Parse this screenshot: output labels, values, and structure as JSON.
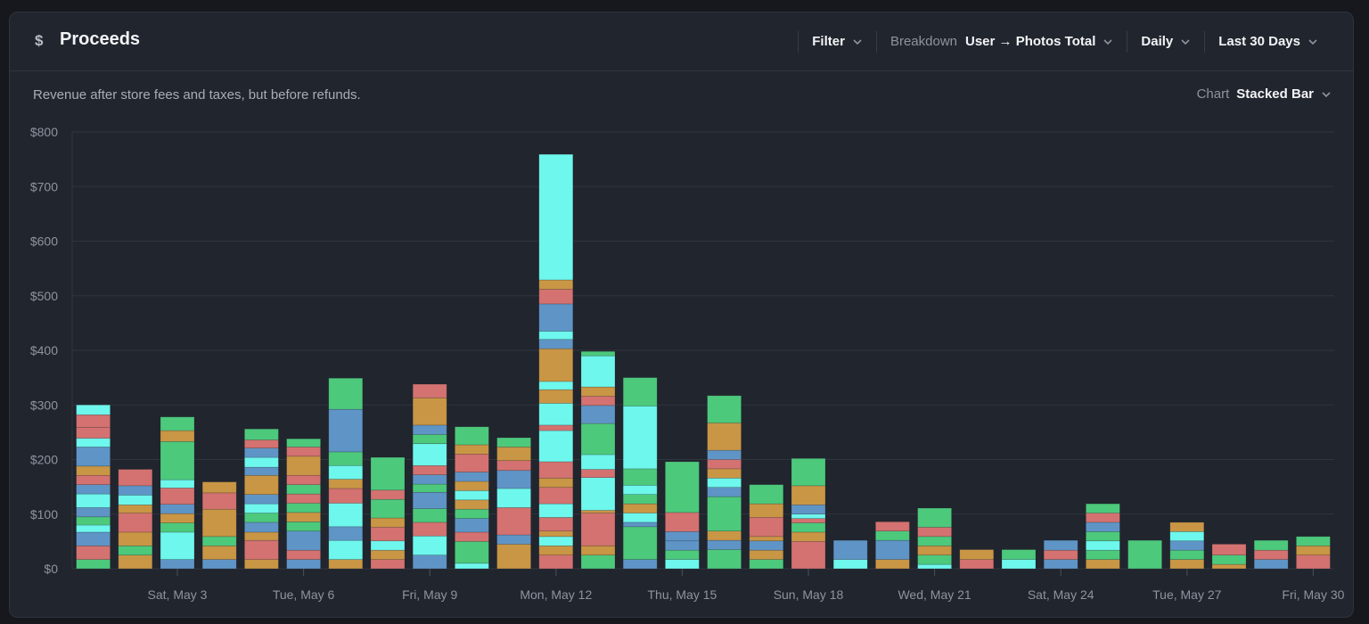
{
  "header": {
    "title": "Proceeds",
    "icon": "dollar-icon",
    "filter_label": "Filter",
    "breakdown_label": "Breakdown",
    "breakdown_value": "User → Photos Total",
    "interval_value": "Daily",
    "range_value": "Last 30 Days"
  },
  "subtitle": "Revenue after store fees and taxes, but before refunds.",
  "chart_select": {
    "label": "Chart",
    "value": "Stacked Bar"
  },
  "chart_data": {
    "type": "bar",
    "stacked": true,
    "ylim": [
      0,
      800
    ],
    "yticks": [
      0,
      100,
      200,
      300,
      400,
      500,
      600,
      700,
      800
    ],
    "ytick_labels": [
      "$0",
      "$100",
      "$200",
      "$300",
      "$400",
      "$500",
      "$600",
      "$700",
      "$800"
    ],
    "xtick_labels": [
      "Sat, May 3",
      "Tue, May 6",
      "Fri, May 9",
      "Mon, May 12",
      "Thu, May 15",
      "Sun, May 18",
      "Wed, May 21",
      "Sat, May 24",
      "Tue, May 27",
      "Fri, May 30"
    ],
    "xtick_indices": [
      2,
      5,
      8,
      11,
      14,
      17,
      20,
      23,
      26,
      29
    ],
    "grid": true,
    "colors": [
      "#4dc97c",
      "#d37270",
      "#5f95c6",
      "#6ef7ec",
      "#c99645"
    ],
    "categories": [
      "May 1",
      "May 2",
      "May 3",
      "May 4",
      "May 5",
      "May 6",
      "May 7",
      "May 8",
      "May 9",
      "May 10",
      "May 11",
      "May 12",
      "May 13",
      "May 14",
      "May 15",
      "May 16",
      "May 17",
      "May 18",
      "May 19",
      "May 20",
      "May 21",
      "May 22",
      "May 23",
      "May 24",
      "May 25",
      "May 26",
      "May 27",
      "May 28",
      "May 29",
      "May 30"
    ],
    "segments": [
      [
        [
          0,
          17
        ],
        [
          1,
          25
        ],
        [
          2,
          25
        ],
        [
          3,
          13
        ],
        [
          0,
          15
        ],
        [
          2,
          17
        ],
        [
          3,
          25
        ],
        [
          2,
          17
        ],
        [
          1,
          17
        ],
        [
          4,
          17
        ],
        [
          2,
          35
        ],
        [
          3,
          16
        ],
        [
          1,
          20
        ],
        [
          1,
          23
        ],
        [
          3,
          18
        ]
      ],
      [
        [
          4,
          25
        ],
        [
          0,
          17
        ],
        [
          4,
          25
        ],
        [
          1,
          35
        ],
        [
          4,
          15
        ],
        [
          3,
          18
        ],
        [
          2,
          17
        ],
        [
          1,
          30
        ]
      ],
      [
        [
          2,
          17
        ],
        [
          3,
          50
        ],
        [
          0,
          17
        ],
        [
          4,
          17
        ],
        [
          2,
          17
        ],
        [
          1,
          30
        ],
        [
          3,
          15
        ],
        [
          0,
          70
        ],
        [
          4,
          20
        ],
        [
          0,
          25
        ]
      ],
      [
        [
          2,
          17
        ],
        [
          4,
          25
        ],
        [
          0,
          17
        ],
        [
          4,
          50
        ],
        [
          1,
          30
        ],
        [
          4,
          20
        ]
      ],
      [
        [
          4,
          17
        ],
        [
          1,
          35
        ],
        [
          4,
          15
        ],
        [
          2,
          18
        ],
        [
          0,
          17
        ],
        [
          3,
          17
        ],
        [
          2,
          17
        ],
        [
          4,
          35
        ],
        [
          2,
          15
        ],
        [
          3,
          18
        ],
        [
          2,
          17
        ],
        [
          1,
          15
        ],
        [
          0,
          20
        ]
      ],
      [
        [
          2,
          17
        ],
        [
          1,
          17
        ],
        [
          2,
          35
        ],
        [
          0,
          17
        ],
        [
          4,
          17
        ],
        [
          0,
          17
        ],
        [
          1,
          17
        ],
        [
          0,
          17
        ],
        [
          1,
          17
        ],
        [
          4,
          35
        ],
        [
          1,
          17
        ],
        [
          0,
          15
        ]
      ],
      [
        [
          4,
          17
        ],
        [
          3,
          35
        ],
        [
          2,
          25
        ],
        [
          3,
          43
        ],
        [
          1,
          27
        ],
        [
          4,
          17
        ],
        [
          3,
          25
        ],
        [
          0,
          25
        ],
        [
          2,
          78
        ],
        [
          0,
          57
        ]
      ],
      [
        [
          1,
          17
        ],
        [
          4,
          17
        ],
        [
          3,
          17
        ],
        [
          1,
          25
        ],
        [
          4,
          17
        ],
        [
          0,
          34
        ],
        [
          1,
          17
        ],
        [
          0,
          60
        ]
      ],
      [
        [
          2,
          25
        ],
        [
          3,
          35
        ],
        [
          1,
          25
        ],
        [
          0,
          25
        ],
        [
          2,
          30
        ],
        [
          0,
          15
        ],
        [
          2,
          17
        ],
        [
          1,
          17
        ],
        [
          3,
          40
        ],
        [
          0,
          17
        ],
        [
          2,
          17
        ],
        [
          4,
          50
        ],
        [
          1,
          25
        ]
      ],
      [
        [
          3,
          10
        ],
        [
          0,
          40
        ],
        [
          1,
          17
        ],
        [
          2,
          25
        ],
        [
          0,
          17
        ],
        [
          4,
          17
        ],
        [
          3,
          17
        ],
        [
          4,
          17
        ],
        [
          2,
          17
        ],
        [
          1,
          33
        ],
        [
          4,
          17
        ],
        [
          0,
          33
        ]
      ],
      [
        [
          4,
          45
        ],
        [
          2,
          17
        ],
        [
          1,
          50
        ],
        [
          3,
          35
        ],
        [
          2,
          33
        ],
        [
          1,
          18
        ],
        [
          4,
          25
        ],
        [
          0,
          17
        ]
      ],
      [
        [
          1,
          25
        ],
        [
          4,
          17
        ],
        [
          3,
          17
        ],
        [
          4,
          10
        ],
        [
          1,
          25
        ],
        [
          3,
          25
        ],
        [
          1,
          30
        ],
        [
          4,
          17
        ],
        [
          1,
          30
        ],
        [
          3,
          57
        ],
        [
          1,
          10
        ],
        [
          3,
          40
        ],
        [
          4,
          25
        ],
        [
          3,
          15
        ],
        [
          4,
          60
        ],
        [
          2,
          17
        ],
        [
          3,
          15
        ],
        [
          2,
          50
        ],
        [
          1,
          27
        ],
        [
          4,
          17
        ],
        [
          3,
          230
        ]
      ],
      [
        [
          0,
          25
        ],
        [
          4,
          17
        ],
        [
          1,
          60
        ],
        [
          4,
          5
        ],
        [
          3,
          60
        ],
        [
          1,
          15
        ],
        [
          3,
          27
        ],
        [
          0,
          57
        ],
        [
          2,
          33
        ],
        [
          1,
          17
        ],
        [
          4,
          17
        ],
        [
          3,
          57
        ],
        [
          0,
          8
        ]
      ],
      [
        [
          2,
          17
        ],
        [
          0,
          60
        ],
        [
          2,
          8
        ],
        [
          3,
          17
        ],
        [
          4,
          17
        ],
        [
          0,
          17
        ],
        [
          3,
          17
        ],
        [
          0,
          30
        ],
        [
          3,
          115
        ],
        [
          0,
          52
        ]
      ],
      [
        [
          3,
          17
        ],
        [
          0,
          17
        ],
        [
          2,
          17
        ],
        [
          2,
          17
        ],
        [
          1,
          35
        ],
        [
          0,
          93
        ]
      ],
      [
        [
          0,
          35
        ],
        [
          2,
          17
        ],
        [
          4,
          17
        ],
        [
          0,
          63
        ],
        [
          2,
          17
        ],
        [
          3,
          17
        ],
        [
          4,
          17
        ],
        [
          1,
          17
        ],
        [
          2,
          17
        ],
        [
          4,
          50
        ],
        [
          0,
          50
        ]
      ],
      [
        [
          0,
          17
        ],
        [
          4,
          17
        ],
        [
          2,
          17
        ],
        [
          4,
          8
        ],
        [
          1,
          35
        ],
        [
          4,
          25
        ],
        [
          0,
          35
        ]
      ],
      [
        [
          1,
          50
        ],
        [
          4,
          17
        ],
        [
          0,
          17
        ],
        [
          1,
          8
        ],
        [
          3,
          8
        ],
        [
          2,
          17
        ],
        [
          4,
          35
        ],
        [
          0,
          50
        ]
      ],
      [
        [
          3,
          17
        ],
        [
          2,
          35
        ]
      ],
      [
        [
          4,
          17
        ],
        [
          2,
          35
        ],
        [
          0,
          17
        ],
        [
          1,
          17
        ]
      ],
      [
        [
          3,
          8
        ],
        [
          0,
          17
        ],
        [
          4,
          17
        ],
        [
          0,
          17
        ],
        [
          1,
          17
        ],
        [
          0,
          35
        ]
      ],
      [
        [
          1,
          17
        ],
        [
          4,
          18
        ]
      ],
      [
        [
          3,
          17
        ],
        [
          0,
          18
        ]
      ],
      [
        [
          2,
          17
        ],
        [
          1,
          17
        ],
        [
          2,
          18
        ]
      ],
      [
        [
          4,
          17
        ],
        [
          0,
          17
        ],
        [
          3,
          17
        ],
        [
          0,
          17
        ],
        [
          2,
          17
        ],
        [
          1,
          17
        ],
        [
          0,
          17
        ]
      ],
      [
        [
          0,
          52
        ]
      ],
      [
        [
          4,
          17
        ],
        [
          0,
          17
        ],
        [
          2,
          17
        ],
        [
          3,
          17
        ],
        [
          4,
          17
        ]
      ],
      [
        [
          4,
          8
        ],
        [
          0,
          17
        ],
        [
          1,
          20
        ]
      ],
      [
        [
          2,
          17
        ],
        [
          1,
          17
        ],
        [
          0,
          18
        ]
      ],
      [
        [
          1,
          25
        ],
        [
          4,
          17
        ],
        [
          0,
          17
        ]
      ]
    ]
  }
}
